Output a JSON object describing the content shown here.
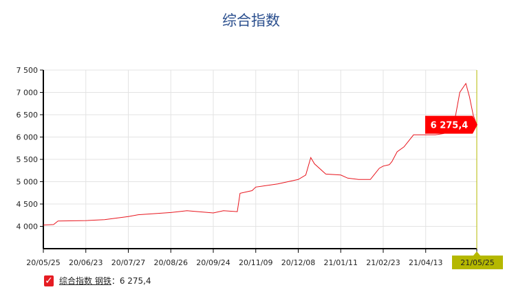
{
  "chart_data": {
    "type": "line",
    "title": "综合指数",
    "xlabel": "",
    "ylabel": "",
    "ylim": [
      3500,
      7500
    ],
    "yticks": [
      4000,
      4500,
      5000,
      5500,
      6000,
      6500,
      7000,
      7500
    ],
    "ytick_labels": [
      "4 000",
      "4 500",
      "5 000",
      "5 500",
      "6 000",
      "6 500",
      "7 000",
      "7 500"
    ],
    "xticks": [
      "2020-05-25",
      "2020-06-23",
      "2020-07-27",
      "2020-08-26",
      "2020-09-24",
      "2020-11-09",
      "2020-12-08",
      "2021-01-11",
      "2021-02-23",
      "2021-04-13",
      "2021-05-25"
    ],
    "xtick_labels": [
      "20/05/25",
      "20/06/23",
      "20/07/27",
      "20/08/26",
      "20/09/24",
      "20/11/09",
      "20/12/08",
      "21/01/11",
      "21/02/23",
      "21/04/13",
      "21/05/25"
    ],
    "grid": true,
    "colors": {
      "line": "#e8141c",
      "crosshair": "#b5b800",
      "title": "#2b4f8e"
    },
    "series": [
      {
        "name": "综合指数 钢铁",
        "x": [
          "2020-05-25",
          "2020-06-01",
          "2020-06-04",
          "2020-06-23",
          "2020-07-08",
          "2020-07-27",
          "2020-08-03",
          "2020-08-26",
          "2020-09-06",
          "2020-09-24",
          "2020-10-05",
          "2020-10-20",
          "2020-10-23",
          "2020-11-05",
          "2020-11-09",
          "2020-11-24",
          "2020-12-01",
          "2020-12-08",
          "2020-12-14",
          "2020-12-18",
          "2020-12-21",
          "2020-12-30",
          "2021-01-11",
          "2021-01-18",
          "2021-01-29",
          "2021-02-10",
          "2021-02-19",
          "2021-02-23",
          "2021-03-02",
          "2021-03-05",
          "2021-03-11",
          "2021-03-19",
          "2021-03-30",
          "2021-04-07",
          "2021-04-13",
          "2021-04-21",
          "2021-04-28",
          "2021-05-07",
          "2021-05-11",
          "2021-05-16",
          "2021-05-19",
          "2021-05-22",
          "2021-05-25"
        ],
        "y": [
          4030,
          4040,
          4120,
          4130,
          4150,
          4220,
          4260,
          4310,
          4350,
          4300,
          4350,
          4330,
          4740,
          4800,
          4880,
          4950,
          5000,
          5050,
          5150,
          5540,
          5400,
          5170,
          5150,
          5080,
          5050,
          5050,
          5300,
          5350,
          5380,
          5450,
          5670,
          5780,
          6050,
          6050,
          6050,
          6050,
          6080,
          6400,
          7000,
          7200,
          6900,
          6500,
          6275.4
        ]
      }
    ],
    "tooltip": {
      "value_label": "6 275,4"
    },
    "crosshair_label": "21/05/25"
  },
  "legend": {
    "name": "综合指数 钢铁",
    "value": "：6 275,4",
    "checked": true,
    "check_icon": "checkmark-icon"
  }
}
